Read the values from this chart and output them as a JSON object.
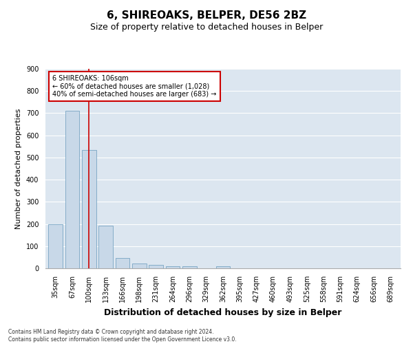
{
  "title": "6, SHIREOAKS, BELPER, DE56 2BZ",
  "subtitle": "Size of property relative to detached houses in Belper",
  "xlabel": "Distribution of detached houses by size in Belper",
  "ylabel": "Number of detached properties",
  "categories": [
    "35sqm",
    "67sqm",
    "100sqm",
    "133sqm",
    "166sqm",
    "198sqm",
    "231sqm",
    "264sqm",
    "296sqm",
    "329sqm",
    "362sqm",
    "395sqm",
    "427sqm",
    "460sqm",
    "493sqm",
    "525sqm",
    "558sqm",
    "591sqm",
    "624sqm",
    "656sqm",
    "689sqm"
  ],
  "bar_values": [
    200,
    710,
    535,
    193,
    46,
    23,
    17,
    10,
    8,
    0,
    8,
    0,
    0,
    0,
    0,
    0,
    0,
    0,
    0,
    0,
    0
  ],
  "bar_color": "#c8d8e8",
  "bar_edge_color": "#6699bb",
  "vline_x": 2.0,
  "vline_color": "#cc0000",
  "annotation_text": "6 SHIREOAKS: 106sqm\n← 60% of detached houses are smaller (1,028)\n40% of semi-detached houses are larger (683) →",
  "annotation_box_color": "#ffffff",
  "annotation_box_edge": "#cc0000",
  "ylim": [
    0,
    900
  ],
  "yticks": [
    0,
    100,
    200,
    300,
    400,
    500,
    600,
    700,
    800,
    900
  ],
  "background_color": "#dce6f0",
  "footer_line1": "Contains HM Land Registry data © Crown copyright and database right 2024.",
  "footer_line2": "Contains public sector information licensed under the Open Government Licence v3.0.",
  "title_fontsize": 11,
  "subtitle_fontsize": 9,
  "xlabel_fontsize": 9,
  "ylabel_fontsize": 8,
  "tick_fontsize": 7,
  "footer_fontsize": 5.5
}
